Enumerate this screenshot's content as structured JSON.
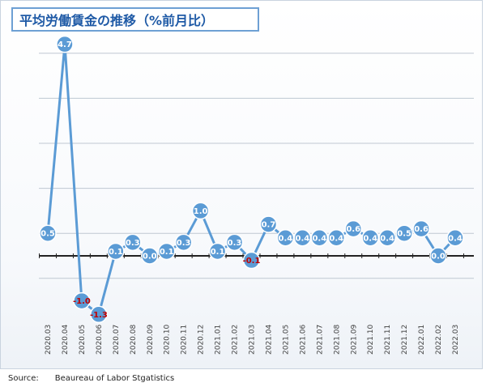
{
  "source": {
    "label": "Source:",
    "text": "Beaureau of Labor Stgatistics"
  },
  "chart_data": {
    "type": "line",
    "title": "平均労働賃金の推移（%前月比）",
    "xlabel": "",
    "ylabel": "",
    "ylim": [
      -1.5,
      5.0
    ],
    "grid": true,
    "categories": [
      "2020.03",
      "2020.04",
      "2020.05",
      "2020.06",
      "2020.07",
      "2020.08",
      "2020.09",
      "2020.10",
      "2020.11",
      "2020.12",
      "2021.01",
      "2021.02",
      "2021.03",
      "2021.04",
      "2021.05",
      "2021.06",
      "2021.07",
      "2021.08",
      "2021.09",
      "2021.10",
      "2021.11",
      "2021.12",
      "2022.01",
      "2022.02",
      "2022.03"
    ],
    "series": [
      {
        "values": [
          0.5,
          4.7,
          -1.0,
          -1.3,
          0.1,
          0.3,
          0.0,
          0.1,
          0.3,
          1.0,
          0.1,
          0.3,
          -0.1,
          0.7,
          0.4,
          0.4,
          0.4,
          0.4,
          0.6,
          0.4,
          0.4,
          0.5,
          0.6,
          0.0,
          0.4
        ],
        "labels": [
          "0.5",
          "4.7",
          "-1.0",
          "-1.3",
          "0.1",
          "0.3",
          "0.0",
          "0.1",
          "0.3",
          "1.0",
          "0.1",
          "0.3",
          "-0.1",
          "0.7",
          "0.4",
          "0.4",
          "0.4",
          "0.4",
          "0.6",
          "0.4",
          "0.4",
          "0.5",
          "0.6",
          "0.0",
          "0.4"
        ]
      }
    ],
    "colors": {
      "line": "#5b9bd5",
      "marker": "#5b9bd5",
      "label_positive": "#ffffff",
      "label_negative": "#c00000",
      "zero_line": "#222222",
      "grid": "#bfc8d2",
      "title": "#1f5aa6"
    }
  }
}
